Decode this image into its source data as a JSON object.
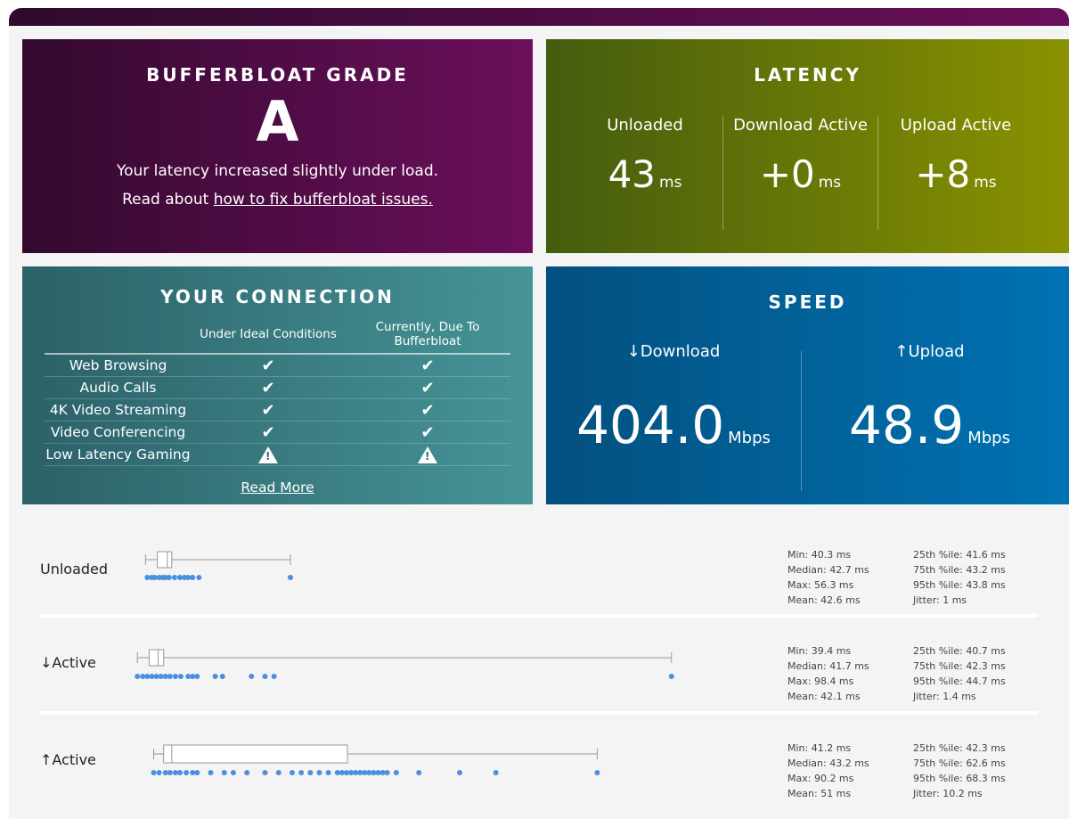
{
  "grade": {
    "title": "BUFFERBLOAT GRADE",
    "letter": "A",
    "text1": "Your latency increased slightly under load.",
    "text2_prefix": "Read about ",
    "text2_link": "how to fix bufferbloat issues."
  },
  "latency": {
    "title": "LATENCY",
    "cols": [
      {
        "label": "Unloaded",
        "value": "43",
        "unit": "ms"
      },
      {
        "label": "Download Active",
        "value": "+0",
        "unit": "ms"
      },
      {
        "label": "Upload Active",
        "value": "+8",
        "unit": "ms"
      }
    ]
  },
  "connection": {
    "title": "YOUR CONNECTION",
    "headers": [
      "Under Ideal Conditions",
      "Currently, Due To Bufferbloat"
    ],
    "rows": [
      {
        "name": "Web Browsing",
        "ideal": "check",
        "current": "check"
      },
      {
        "name": "Audio Calls",
        "ideal": "check",
        "current": "check"
      },
      {
        "name": "4K Video Streaming",
        "ideal": "check",
        "current": "check"
      },
      {
        "name": "Video Conferencing",
        "ideal": "check",
        "current": "check"
      },
      {
        "name": "Low Latency Gaming",
        "ideal": "warning",
        "current": "warning"
      }
    ],
    "check_glyph": "✔",
    "warn_glyph": "!",
    "read_more": "Read More"
  },
  "speed": {
    "title": "SPEED",
    "download": {
      "arrow": "↓",
      "label": "Download",
      "value": "404.0",
      "unit": "Mbps"
    },
    "upload": {
      "arrow": "↑",
      "label": "Upload",
      "value": "48.9",
      "unit": "Mbps"
    }
  },
  "boxplots": [
    {
      "arrow": "",
      "label": "Unloaded",
      "min": 40.3,
      "q1": 41.6,
      "median": 42.7,
      "q3": 43.2,
      "max": 56.3,
      "outliers": [
        40.5,
        41.0,
        41.3,
        41.8,
        42.2,
        42.5,
        42.9,
        43.5,
        44.1,
        44.6,
        45.0,
        45.5,
        46.2,
        56.3
      ],
      "stats_left": [
        "Min: 40.3 ms",
        "Median: 42.7 ms",
        "Max: 56.3 ms",
        "Mean: 42.6 ms"
      ],
      "stats_right": [
        "25th %ile: 41.6 ms",
        "75th %ile: 43.2 ms",
        "95th %ile: 43.8 ms",
        "Jitter: 1 ms"
      ]
    },
    {
      "arrow": "↓",
      "label": "Active",
      "min": 39.4,
      "q1": 40.7,
      "median": 41.7,
      "q3": 42.3,
      "max": 98.4,
      "outliers": [
        39.4,
        40.0,
        40.5,
        41.0,
        41.5,
        42.0,
        42.5,
        43.0,
        43.6,
        44.2,
        45.0,
        45.5,
        46.0,
        48.0,
        48.8,
        52.0,
        53.5,
        54.5,
        98.4
      ],
      "stats_left": [
        "Min: 39.4 ms",
        "Median: 41.7 ms",
        "Max: 98.4 ms",
        "Mean: 42.1 ms"
      ],
      "stats_right": [
        "25th %ile: 40.7 ms",
        "75th %ile: 42.3 ms",
        "95th %ile: 44.7 ms",
        "Jitter: 1.4 ms"
      ]
    },
    {
      "arrow": "↑",
      "label": "Active",
      "min": 41.2,
      "q1": 42.3,
      "median": 43.2,
      "q3": 62.6,
      "max": 90.2,
      "outliers": [
        41.2,
        41.8,
        42.5,
        43.0,
        43.6,
        44.1,
        44.8,
        45.5,
        46.0,
        47.5,
        49.0,
        50.0,
        51.5,
        53.5,
        55.0,
        56.5,
        57.5,
        58.5,
        59.5,
        60.5,
        61.5,
        62.0,
        62.5,
        63.0,
        63.5,
        64.0,
        64.5,
        65.0,
        65.5,
        66.0,
        66.5,
        67.0,
        68.0,
        70.5,
        75.0,
        79.0,
        90.2
      ],
      "stats_left": [
        "Min: 41.2 ms",
        "Median: 43.2 ms",
        "Max: 90.2 ms",
        "Mean: 51 ms"
      ],
      "stats_right": [
        "25th %ile: 42.3 ms",
        "75th %ile: 62.6 ms",
        "95th %ile: 68.3 ms",
        "Jitter: 10.2 ms"
      ]
    }
  ],
  "colors": {
    "dot": "#4a8fe0",
    "box_stroke": "#999999"
  }
}
